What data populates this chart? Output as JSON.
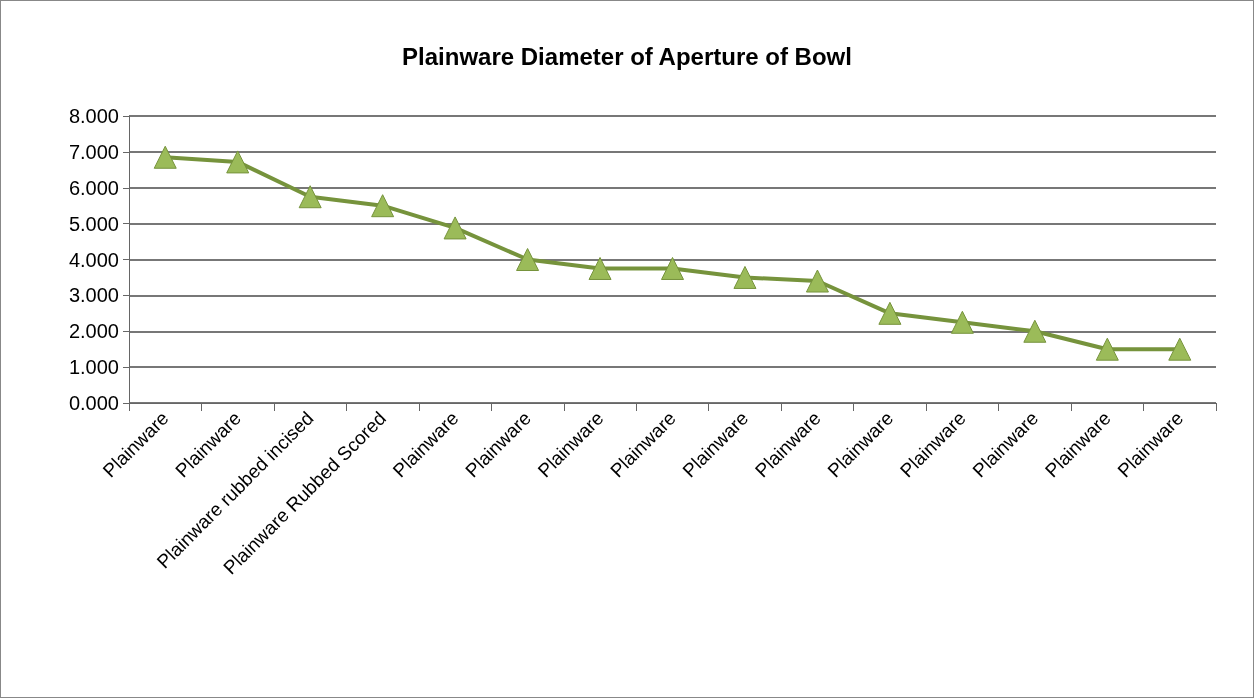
{
  "chart_data": {
    "type": "line",
    "title": "Plainware Diameter of Aperture of Bowl",
    "categories": [
      "Plainware",
      "Plainware",
      "Plainware rubbed incised",
      "Plainware Rubbed Scored",
      "Plainware",
      "Plainware",
      "Plainware",
      "Plainware",
      "Plainware",
      "Plainware",
      "Plainware",
      "Plainware",
      "Plainware",
      "Plainware",
      "Plainware"
    ],
    "series": [
      {
        "color": "#76933c",
        "values": [
          6.85,
          6.72,
          5.75,
          5.5,
          4.88,
          4.0,
          3.75,
          3.75,
          3.5,
          3.4,
          2.5,
          2.25,
          2.0,
          1.5,
          1.5
        ]
      }
    ],
    "ylim": [
      0,
      8
    ],
    "yticks": [
      {
        "value": 0,
        "label": "0.000"
      },
      {
        "value": 1,
        "label": "1.000"
      },
      {
        "value": 2,
        "label": "2.000"
      },
      {
        "value": 3,
        "label": "3.000"
      },
      {
        "value": 4,
        "label": "4.000"
      },
      {
        "value": 5,
        "label": "5.000"
      },
      {
        "value": 6,
        "label": "6.000"
      },
      {
        "value": 7,
        "label": "7.000"
      },
      {
        "value": 8,
        "label": "8.000"
      }
    ],
    "grid": "y",
    "marker": "triangle",
    "line_style": "solid"
  }
}
